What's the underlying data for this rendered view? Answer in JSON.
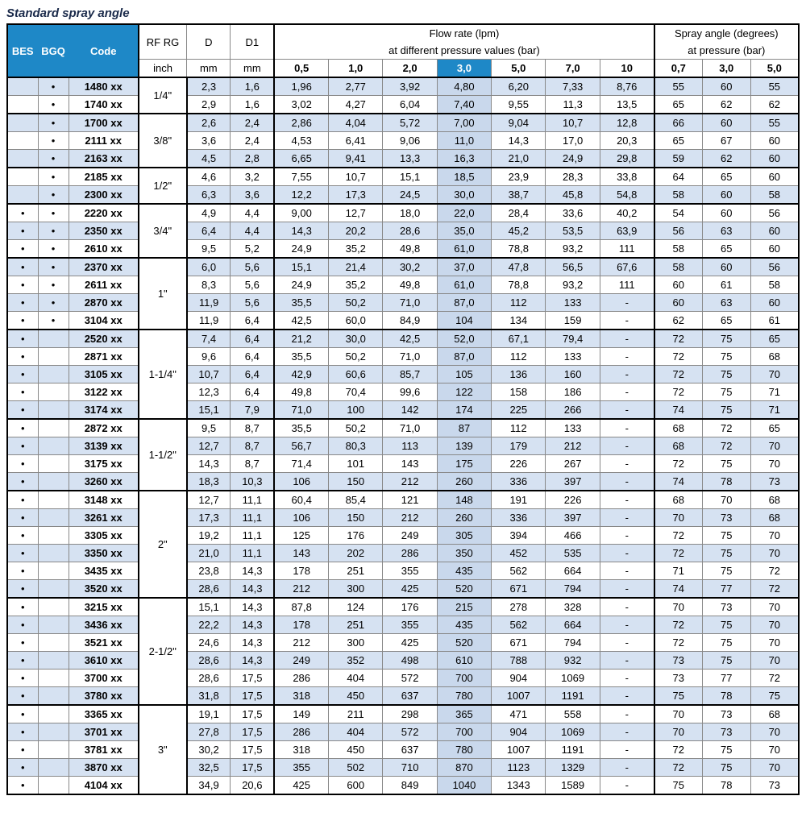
{
  "title": "Standard spray angle",
  "headers": {
    "bes": "BES",
    "bgq": "BGQ",
    "code": "Code",
    "rf": "RF RG",
    "d": "D",
    "d1": "D1",
    "flow_top": "Flow rate (lpm)",
    "flow_sub": "at different pressure values (bar)",
    "angle_top": "Spray angle (degrees)",
    "angle_sub": "at pressure (bar)",
    "rf_unit": "inch",
    "d_unit": "mm",
    "d1_unit": "mm"
  },
  "flow_pressures": [
    "0,5",
    "1,0",
    "2,0",
    "3,0",
    "5,0",
    "7,0",
    "10"
  ],
  "angle_pressures": [
    "0,7",
    "3,0",
    "5,0"
  ],
  "highlight_flow_idx": 3,
  "groups": [
    {
      "rf": "1/4\"",
      "rows": [
        {
          "bes": "",
          "bgq": "•",
          "code": "1480 xx",
          "d": "2,3",
          "d1": "1,6",
          "flow": [
            "1,96",
            "2,77",
            "3,92",
            "4,80",
            "6,20",
            "7,33",
            "8,76"
          ],
          "angle": [
            "55",
            "60",
            "55"
          ]
        },
        {
          "bes": "",
          "bgq": "•",
          "code": "1740 xx",
          "d": "2,9",
          "d1": "1,6",
          "flow": [
            "3,02",
            "4,27",
            "6,04",
            "7,40",
            "9,55",
            "11,3",
            "13,5"
          ],
          "angle": [
            "65",
            "62",
            "62"
          ]
        }
      ]
    },
    {
      "rf": "3/8\"",
      "rows": [
        {
          "bes": "",
          "bgq": "•",
          "code": "1700 xx",
          "d": "2,6",
          "d1": "2,4",
          "flow": [
            "2,86",
            "4,04",
            "5,72",
            "7,00",
            "9,04",
            "10,7",
            "12,8"
          ],
          "angle": [
            "66",
            "60",
            "55"
          ]
        },
        {
          "bes": "",
          "bgq": "•",
          "code": "2111 xx",
          "d": "3,6",
          "d1": "2,4",
          "flow": [
            "4,53",
            "6,41",
            "9,06",
            "11,0",
            "14,3",
            "17,0",
            "20,3"
          ],
          "angle": [
            "65",
            "67",
            "60"
          ]
        },
        {
          "bes": "",
          "bgq": "•",
          "code": "2163 xx",
          "d": "4,5",
          "d1": "2,8",
          "flow": [
            "6,65",
            "9,41",
            "13,3",
            "16,3",
            "21,0",
            "24,9",
            "29,8"
          ],
          "angle": [
            "59",
            "62",
            "60"
          ]
        }
      ]
    },
    {
      "rf": "1/2\"",
      "rows": [
        {
          "bes": "",
          "bgq": "•",
          "code": "2185 xx",
          "d": "4,6",
          "d1": "3,2",
          "flow": [
            "7,55",
            "10,7",
            "15,1",
            "18,5",
            "23,9",
            "28,3",
            "33,8"
          ],
          "angle": [
            "64",
            "65",
            "60"
          ]
        },
        {
          "bes": "",
          "bgq": "•",
          "code": "2300 xx",
          "d": "6,3",
          "d1": "3,6",
          "flow": [
            "12,2",
            "17,3",
            "24,5",
            "30,0",
            "38,7",
            "45,8",
            "54,8"
          ],
          "angle": [
            "58",
            "60",
            "58"
          ]
        }
      ]
    },
    {
      "rf": "3/4\"",
      "rows": [
        {
          "bes": "•",
          "bgq": "•",
          "code": "2220 xx",
          "d": "4,9",
          "d1": "4,4",
          "flow": [
            "9,00",
            "12,7",
            "18,0",
            "22,0",
            "28,4",
            "33,6",
            "40,2"
          ],
          "angle": [
            "54",
            "60",
            "56"
          ]
        },
        {
          "bes": "•",
          "bgq": "•",
          "code": "2350 xx",
          "d": "6,4",
          "d1": "4,4",
          "flow": [
            "14,3",
            "20,2",
            "28,6",
            "35,0",
            "45,2",
            "53,5",
            "63,9"
          ],
          "angle": [
            "56",
            "63",
            "60"
          ]
        },
        {
          "bes": "•",
          "bgq": "•",
          "code": "2610 xx",
          "d": "9,5",
          "d1": "5,2",
          "flow": [
            "24,9",
            "35,2",
            "49,8",
            "61,0",
            "78,8",
            "93,2",
            "111"
          ],
          "angle": [
            "58",
            "65",
            "60"
          ]
        }
      ]
    },
    {
      "rf": "1\"",
      "rows": [
        {
          "bes": "•",
          "bgq": "•",
          "code": "2370 xx",
          "d": "6,0",
          "d1": "5,6",
          "flow": [
            "15,1",
            "21,4",
            "30,2",
            "37,0",
            "47,8",
            "56,5",
            "67,6"
          ],
          "angle": [
            "58",
            "60",
            "56"
          ]
        },
        {
          "bes": "•",
          "bgq": "•",
          "code": "2611 xx",
          "d": "8,3",
          "d1": "5,6",
          "flow": [
            "24,9",
            "35,2",
            "49,8",
            "61,0",
            "78,8",
            "93,2",
            "111"
          ],
          "angle": [
            "60",
            "61",
            "58"
          ]
        },
        {
          "bes": "•",
          "bgq": "•",
          "code": "2870 xx",
          "d": "11,9",
          "d1": "5,6",
          "flow": [
            "35,5",
            "50,2",
            "71,0",
            "87,0",
            "112",
            "133",
            "-"
          ],
          "angle": [
            "60",
            "63",
            "60"
          ]
        },
        {
          "bes": "•",
          "bgq": "•",
          "code": "3104 xx",
          "d": "11,9",
          "d1": "6,4",
          "flow": [
            "42,5",
            "60,0",
            "84,9",
            "104",
            "134",
            "159",
            "-"
          ],
          "angle": [
            "62",
            "65",
            "61"
          ]
        }
      ]
    },
    {
      "rf": "1-1/4\"",
      "rows": [
        {
          "bes": "•",
          "bgq": "",
          "code": "2520 xx",
          "d": "7,4",
          "d1": "6,4",
          "flow": [
            "21,2",
            "30,0",
            "42,5",
            "52,0",
            "67,1",
            "79,4",
            "-"
          ],
          "angle": [
            "72",
            "75",
            "65"
          ]
        },
        {
          "bes": "•",
          "bgq": "",
          "code": "2871 xx",
          "d": "9,6",
          "d1": "6,4",
          "flow": [
            "35,5",
            "50,2",
            "71,0",
            "87,0",
            "112",
            "133",
            "-"
          ],
          "angle": [
            "72",
            "75",
            "68"
          ]
        },
        {
          "bes": "•",
          "bgq": "",
          "code": "3105 xx",
          "d": "10,7",
          "d1": "6,4",
          "flow": [
            "42,9",
            "60,6",
            "85,7",
            "105",
            "136",
            "160",
            "-"
          ],
          "angle": [
            "72",
            "75",
            "70"
          ]
        },
        {
          "bes": "•",
          "bgq": "",
          "code": "3122 xx",
          "d": "12,3",
          "d1": "6,4",
          "flow": [
            "49,8",
            "70,4",
            "99,6",
            "122",
            "158",
            "186",
            "-"
          ],
          "angle": [
            "72",
            "75",
            "71"
          ]
        },
        {
          "bes": "•",
          "bgq": "",
          "code": "3174 xx",
          "d": "15,1",
          "d1": "7,9",
          "flow": [
            "71,0",
            "100",
            "142",
            "174",
            "225",
            "266",
            "-"
          ],
          "angle": [
            "74",
            "75",
            "71"
          ]
        }
      ]
    },
    {
      "rf": "1-1/2\"",
      "rows": [
        {
          "bes": "•",
          "bgq": "",
          "code": "2872 xx",
          "d": "9,5",
          "d1": "8,7",
          "flow": [
            "35,5",
            "50,2",
            "71,0",
            "87",
            "112",
            "133",
            "-"
          ],
          "angle": [
            "68",
            "72",
            "65"
          ]
        },
        {
          "bes": "•",
          "bgq": "",
          "code": "3139 xx",
          "d": "12,7",
          "d1": "8,7",
          "flow": [
            "56,7",
            "80,3",
            "113",
            "139",
            "179",
            "212",
            "-"
          ],
          "angle": [
            "68",
            "72",
            "70"
          ]
        },
        {
          "bes": "•",
          "bgq": "",
          "code": "3175 xx",
          "d": "14,3",
          "d1": "8,7",
          "flow": [
            "71,4",
            "101",
            "143",
            "175",
            "226",
            "267",
            "-"
          ],
          "angle": [
            "72",
            "75",
            "70"
          ]
        },
        {
          "bes": "•",
          "bgq": "",
          "code": "3260 xx",
          "d": "18,3",
          "d1": "10,3",
          "flow": [
            "106",
            "150",
            "212",
            "260",
            "336",
            "397",
            "-"
          ],
          "angle": [
            "74",
            "78",
            "73"
          ]
        }
      ]
    },
    {
      "rf": "2\"",
      "rows": [
        {
          "bes": "•",
          "bgq": "",
          "code": "3148 xx",
          "d": "12,7",
          "d1": "11,1",
          "flow": [
            "60,4",
            "85,4",
            "121",
            "148",
            "191",
            "226",
            "-"
          ],
          "angle": [
            "68",
            "70",
            "68"
          ]
        },
        {
          "bes": "•",
          "bgq": "",
          "code": "3261 xx",
          "d": "17,3",
          "d1": "11,1",
          "flow": [
            "106",
            "150",
            "212",
            "260",
            "336",
            "397",
            "-"
          ],
          "angle": [
            "70",
            "73",
            "68"
          ]
        },
        {
          "bes": "•",
          "bgq": "",
          "code": "3305 xx",
          "d": "19,2",
          "d1": "11,1",
          "flow": [
            "125",
            "176",
            "249",
            "305",
            "394",
            "466",
            "-"
          ],
          "angle": [
            "72",
            "75",
            "70"
          ]
        },
        {
          "bes": "•",
          "bgq": "",
          "code": "3350 xx",
          "d": "21,0",
          "d1": "11,1",
          "flow": [
            "143",
            "202",
            "286",
            "350",
            "452",
            "535",
            "-"
          ],
          "angle": [
            "72",
            "75",
            "70"
          ]
        },
        {
          "bes": "•",
          "bgq": "",
          "code": "3435 xx",
          "d": "23,8",
          "d1": "14,3",
          "flow": [
            "178",
            "251",
            "355",
            "435",
            "562",
            "664",
            "-"
          ],
          "angle": [
            "71",
            "75",
            "72"
          ]
        },
        {
          "bes": "•",
          "bgq": "",
          "code": "3520 xx",
          "d": "28,6",
          "d1": "14,3",
          "flow": [
            "212",
            "300",
            "425",
            "520",
            "671",
            "794",
            "-"
          ],
          "angle": [
            "74",
            "77",
            "72"
          ]
        }
      ]
    },
    {
      "rf": "2-1/2\"",
      "rows": [
        {
          "bes": "•",
          "bgq": "",
          "code": "3215 xx",
          "d": "15,1",
          "d1": "14,3",
          "flow": [
            "87,8",
            "124",
            "176",
            "215",
            "278",
            "328",
            "-"
          ],
          "angle": [
            "70",
            "73",
            "70"
          ]
        },
        {
          "bes": "•",
          "bgq": "",
          "code": "3436 xx",
          "d": "22,2",
          "d1": "14,3",
          "flow": [
            "178",
            "251",
            "355",
            "435",
            "562",
            "664",
            "-"
          ],
          "angle": [
            "72",
            "75",
            "70"
          ]
        },
        {
          "bes": "•",
          "bgq": "",
          "code": "3521 xx",
          "d": "24,6",
          "d1": "14,3",
          "flow": [
            "212",
            "300",
            "425",
            "520",
            "671",
            "794",
            "-"
          ],
          "angle": [
            "72",
            "75",
            "70"
          ]
        },
        {
          "bes": "•",
          "bgq": "",
          "code": "3610 xx",
          "d": "28,6",
          "d1": "14,3",
          "flow": [
            "249",
            "352",
            "498",
            "610",
            "788",
            "932",
            "-"
          ],
          "angle": [
            "73",
            "75",
            "70"
          ]
        },
        {
          "bes": "•",
          "bgq": "",
          "code": "3700 xx",
          "d": "28,6",
          "d1": "17,5",
          "flow": [
            "286",
            "404",
            "572",
            "700",
            "904",
            "1069",
            "-"
          ],
          "angle": [
            "73",
            "77",
            "72"
          ]
        },
        {
          "bes": "•",
          "bgq": "",
          "code": "3780 xx",
          "d": "31,8",
          "d1": "17,5",
          "flow": [
            "318",
            "450",
            "637",
            "780",
            "1007",
            "1191",
            "-"
          ],
          "angle": [
            "75",
            "78",
            "75"
          ]
        }
      ]
    },
    {
      "rf": "3\"",
      "rows": [
        {
          "bes": "•",
          "bgq": "",
          "code": "3365 xx",
          "d": "19,1",
          "d1": "17,5",
          "flow": [
            "149",
            "211",
            "298",
            "365",
            "471",
            "558",
            "-"
          ],
          "angle": [
            "70",
            "73",
            "68"
          ]
        },
        {
          "bes": "•",
          "bgq": "",
          "code": "3701 xx",
          "d": "27,8",
          "d1": "17,5",
          "flow": [
            "286",
            "404",
            "572",
            "700",
            "904",
            "1069",
            "-"
          ],
          "angle": [
            "70",
            "73",
            "70"
          ]
        },
        {
          "bes": "•",
          "bgq": "",
          "code": "3781 xx",
          "d": "30,2",
          "d1": "17,5",
          "flow": [
            "318",
            "450",
            "637",
            "780",
            "1007",
            "1191",
            "-"
          ],
          "angle": [
            "72",
            "75",
            "70"
          ]
        },
        {
          "bes": "•",
          "bgq": "",
          "code": "3870 xx",
          "d": "32,5",
          "d1": "17,5",
          "flow": [
            "355",
            "502",
            "710",
            "870",
            "1123",
            "1329",
            "-"
          ],
          "angle": [
            "72",
            "75",
            "70"
          ]
        },
        {
          "bes": "•",
          "bgq": "",
          "code": "4104 xx",
          "d": "34,9",
          "d1": "20,6",
          "flow": [
            "425",
            "600",
            "849",
            "1040",
            "1343",
            "1589",
            "-"
          ],
          "angle": [
            "75",
            "78",
            "73"
          ]
        }
      ]
    }
  ]
}
